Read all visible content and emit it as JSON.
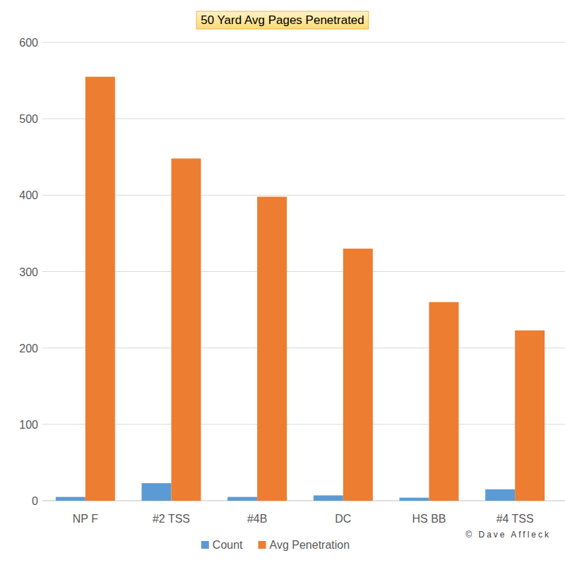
{
  "chart_data": {
    "type": "bar",
    "title": "50 Yard Avg Pages Penetrated",
    "categories": [
      "NP F",
      "#2 TSS",
      "#4B",
      "DC",
      "HS BB",
      "#4 TSS"
    ],
    "series": [
      {
        "name": "Count",
        "color": "#5b9bd5",
        "values": [
          5,
          23,
          5,
          7,
          4,
          15
        ]
      },
      {
        "name": "Avg Penetration",
        "color": "#ed7d31",
        "values": [
          555,
          448,
          398,
          330,
          260,
          223
        ]
      }
    ],
    "ylim": [
      0,
      600
    ],
    "yticks": [
      0,
      100,
      200,
      300,
      400,
      500,
      600
    ],
    "grid": true,
    "legend": "bottom",
    "annotations": [
      "© Dave Affleck"
    ]
  }
}
